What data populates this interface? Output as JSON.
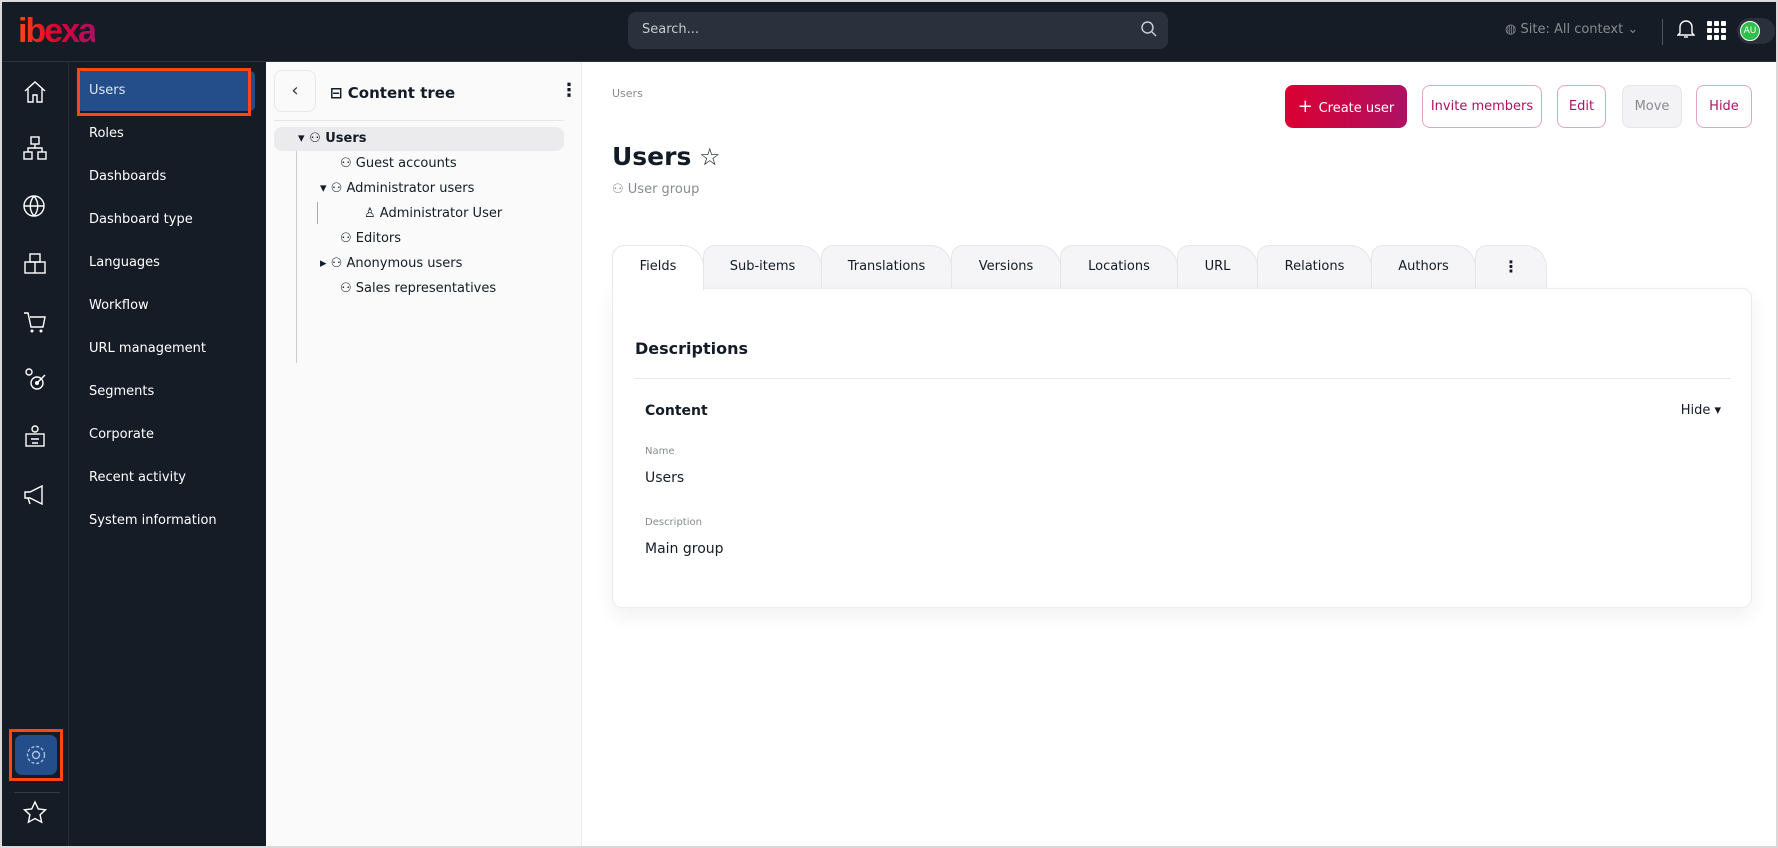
{
  "header": {
    "logo": "ibexa",
    "search_placeholder": "Search...",
    "site_context": "Site: All context",
    "avatar_initials": "AU"
  },
  "rail": {
    "items": [
      "home-icon",
      "structure-icon",
      "globe-icon",
      "catalog-icon",
      "cart-icon",
      "targeting-icon",
      "customer-icon",
      "megaphone-icon"
    ],
    "settings": "gear-icon",
    "bookmarks": "star-icon"
  },
  "admin_menu": {
    "items": [
      {
        "label": "Users",
        "active": true
      },
      {
        "label": "Roles"
      },
      {
        "label": "Dashboards"
      },
      {
        "label": "Dashboard type"
      },
      {
        "label": "Languages"
      },
      {
        "label": "Workflow"
      },
      {
        "label": "URL management"
      },
      {
        "label": "Segments"
      },
      {
        "label": "Corporate"
      },
      {
        "label": "Recent activity"
      },
      {
        "label": "System information"
      }
    ]
  },
  "tree": {
    "title": "Content tree",
    "nodes": [
      {
        "label": "Users"
      },
      {
        "label": "Guest accounts"
      },
      {
        "label": "Administrator users"
      },
      {
        "label": "Administrator User"
      },
      {
        "label": "Editors"
      },
      {
        "label": "Anonymous users"
      },
      {
        "label": "Sales representatives"
      }
    ]
  },
  "main": {
    "breadcrumb": "Users",
    "title": "Users",
    "content_type": "User group",
    "actions": {
      "create": "Create user",
      "invite": "Invite members",
      "edit": "Edit",
      "move": "Move",
      "hide": "Hide"
    },
    "tabs": [
      "Fields",
      "Sub-items",
      "Translations",
      "Versions",
      "Locations",
      "URL",
      "Relations",
      "Authors"
    ],
    "section": "Descriptions",
    "group": "Content",
    "group_toggle": "Hide",
    "fields": [
      {
        "label": "Name",
        "value": "Users"
      },
      {
        "label": "Description",
        "value": "Main group"
      }
    ]
  },
  "colors": {
    "brand": "#db0032",
    "accent": "#ae1164",
    "dark": "#161c26",
    "active": "#234e8a",
    "highlight": "#ff4713"
  }
}
